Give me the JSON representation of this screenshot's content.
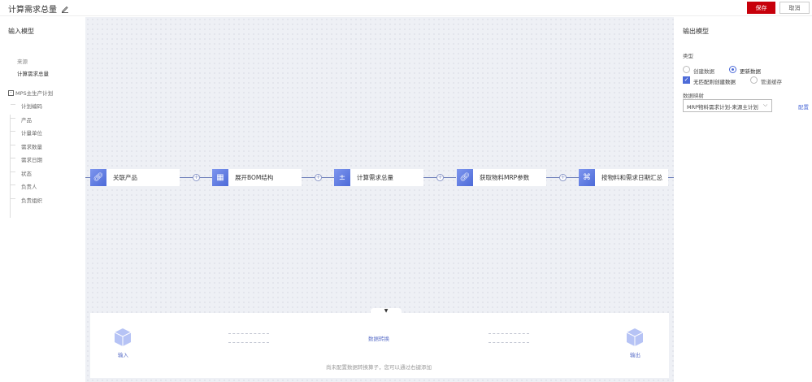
{
  "header": {
    "title": "计算需求总量",
    "save_label": "保存",
    "cancel_label": "取消"
  },
  "input_model": {
    "heading": "输入模型",
    "source_label": "来源",
    "source_value": "计算需求总量",
    "group": "MPS主生产计划",
    "fields": [
      "计划编码",
      "产品",
      "计量单位",
      "需求数量",
      "需求日期",
      "状态",
      "负责人",
      "负责组织"
    ]
  },
  "flow": {
    "nodes": [
      {
        "label": "关联产品",
        "icon": "link-icon"
      },
      {
        "label": "展开BOM结构",
        "icon": "grid-icon"
      },
      {
        "label": "计算需求总量",
        "icon": "calculator-icon"
      },
      {
        "label": "获取物料MRP参数",
        "icon": "link-icon"
      },
      {
        "label": "按物料和需求日期汇总",
        "icon": "aggregate-icon"
      }
    ]
  },
  "transform": {
    "input_label": "输入",
    "center_label": "数据转换",
    "output_label": "输出",
    "hint": "尚未配置数据转换算子，您可以通过右键添加"
  },
  "output_model": {
    "heading": "输出模型",
    "type_label": "类型",
    "options": [
      {
        "label": "创建数据",
        "checked": false
      },
      {
        "label": "更新数据",
        "checked": true
      }
    ],
    "create_if_no_match": {
      "label": "无匹配则创建数据",
      "checked": true
    },
    "pipeline_cache": {
      "label": "管道缓存",
      "checked": false
    },
    "mapping_label": "数据映射",
    "mapping_value": "MRP物料需求计划-来源主计划",
    "config_link": "配置"
  },
  "colors": {
    "accent": "#4d6bd8",
    "save": "#c7000b"
  }
}
